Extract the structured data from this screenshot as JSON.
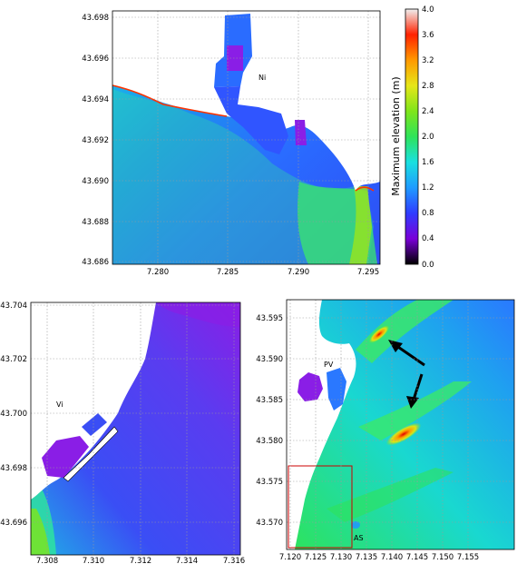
{
  "colorbar": {
    "title": "Maximum elevation (m)",
    "ticks": [
      "0.0",
      "0.4",
      "0.8",
      "1.2",
      "1.6",
      "2.0",
      "2.4",
      "2.8",
      "3.2",
      "3.6",
      "4.0"
    ],
    "colors": [
      "#000000",
      "#7a00d8",
      "#2f3cff",
      "#1f9bff",
      "#19e0e0",
      "#2ee35a",
      "#7fe51a",
      "#e6e619",
      "#ff9900",
      "#ff2200",
      "#f0f0f0"
    ]
  },
  "panel_top": {
    "label_ni": "Ni",
    "yticks": [
      "43.698",
      "43.696",
      "43.694",
      "43.692",
      "43.690",
      "43.688",
      "43.686"
    ],
    "xticks": [
      "7.280",
      "7.285",
      "7.290",
      "7.295"
    ]
  },
  "panel_left": {
    "label_vi": "Vi",
    "yticks": [
      "43.704",
      "43.702",
      "43.700",
      "43.698",
      "43.696"
    ],
    "xticks": [
      "7.308",
      "7.310",
      "7.312",
      "7.314",
      "7.316"
    ]
  },
  "panel_right": {
    "label_pv": "PV",
    "label_as": "AS",
    "yticks": [
      "43.595",
      "43.590",
      "43.585",
      "43.580",
      "43.575",
      "43.570"
    ],
    "xticks": [
      "7.120",
      "7.125",
      "7.130",
      "7.135",
      "7.140",
      "7.145",
      "7.150",
      "7.155"
    ]
  }
}
